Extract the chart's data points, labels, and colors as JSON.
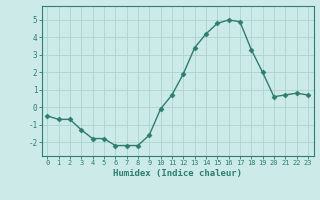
{
  "x": [
    0,
    1,
    2,
    3,
    4,
    5,
    6,
    7,
    8,
    9,
    10,
    11,
    12,
    13,
    14,
    15,
    16,
    17,
    18,
    19,
    20,
    21,
    22,
    23
  ],
  "y": [
    -0.5,
    -0.7,
    -0.7,
    -1.3,
    -1.8,
    -1.8,
    -2.2,
    -2.2,
    -2.2,
    -1.6,
    -0.1,
    0.7,
    1.9,
    3.4,
    4.2,
    4.8,
    5.0,
    4.9,
    3.3,
    2.0,
    0.6,
    0.7,
    0.8,
    0.7
  ],
  "xlabel": "Humidex (Indice chaleur)",
  "ylim": [
    -2.8,
    5.8
  ],
  "xlim": [
    -0.5,
    23.5
  ],
  "yticks": [
    -2,
    -1,
    0,
    1,
    2,
    3,
    4,
    5
  ],
  "xticks": [
    0,
    1,
    2,
    3,
    4,
    5,
    6,
    7,
    8,
    9,
    10,
    11,
    12,
    13,
    14,
    15,
    16,
    17,
    18,
    19,
    20,
    21,
    22,
    23
  ],
  "line_color": "#2e7d6e",
  "marker": "D",
  "marker_size": 2.5,
  "bg_color": "#cceae7",
  "grid_color": "#aed4d0",
  "axis_color": "#2e7d6e",
  "tick_color": "#2e7d6e",
  "label_color": "#2e7d6e"
}
